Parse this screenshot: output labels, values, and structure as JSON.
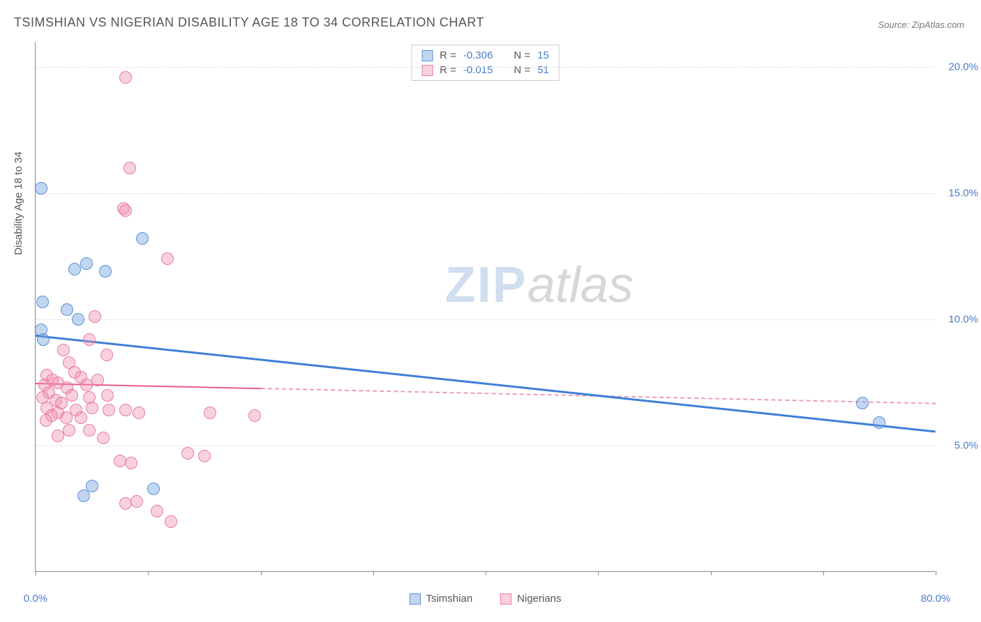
{
  "title": "TSIMSHIAN VS NIGERIAN DISABILITY AGE 18 TO 34 CORRELATION CHART",
  "source": "Source: ZipAtlas.com",
  "ylabel": "Disability Age 18 to 34",
  "watermark_zip": "ZIP",
  "watermark_atlas": "atlas",
  "chart": {
    "type": "scatter",
    "background_color": "#ffffff",
    "grid_color": "#dddddd",
    "axis_color": "#888888",
    "xlim": [
      0,
      80
    ],
    "ylim": [
      0,
      21
    ],
    "xtick_positions": [
      0,
      10,
      20,
      30,
      40,
      50,
      60,
      70,
      80
    ],
    "xtick_labels_shown": {
      "0": "0.0%",
      "80": "80.0%"
    },
    "ytick_positions": [
      5,
      10,
      15,
      20
    ],
    "ytick_labels": {
      "5": "5.0%",
      "10": "10.0%",
      "15": "15.0%",
      "20": "20.0%"
    },
    "point_radius": 9,
    "point_stroke_width": 1.5,
    "series": [
      {
        "name": "Tsimshian",
        "color_fill": "rgba(120,165,225,0.45)",
        "color_stroke": "#5b8fd6",
        "r_label": "R =",
        "r_value": "-0.306",
        "n_label": "N =",
        "n_value": "15",
        "points": [
          {
            "x": 0.5,
            "y": 15.2
          },
          {
            "x": 4.5,
            "y": 12.2
          },
          {
            "x": 3.5,
            "y": 12.0
          },
          {
            "x": 6.2,
            "y": 11.9
          },
          {
            "x": 9.5,
            "y": 13.2
          },
          {
            "x": 2.8,
            "y": 10.4
          },
          {
            "x": 0.6,
            "y": 10.7
          },
          {
            "x": 3.8,
            "y": 10.0
          },
          {
            "x": 0.5,
            "y": 9.6
          },
          {
            "x": 0.7,
            "y": 9.2
          },
          {
            "x": 5.0,
            "y": 3.4
          },
          {
            "x": 4.3,
            "y": 3.0
          },
          {
            "x": 10.5,
            "y": 3.3
          },
          {
            "x": 73.5,
            "y": 6.7
          },
          {
            "x": 75.0,
            "y": 5.9
          }
        ],
        "trend": {
          "x1": 0,
          "y1": 9.4,
          "x2": 80,
          "y2": 5.6,
          "color": "#3d7fd6",
          "width": 2.5,
          "solid_until_x": 80
        }
      },
      {
        "name": "Nigerians",
        "color_fill": "rgba(240,140,170,0.40)",
        "color_stroke": "#e87aa0",
        "r_label": "R =",
        "r_value": "-0.015",
        "n_label": "N =",
        "n_value": "51",
        "points": [
          {
            "x": 8.0,
            "y": 19.6
          },
          {
            "x": 8.4,
            "y": 16.0
          },
          {
            "x": 7.8,
            "y": 14.4
          },
          {
            "x": 8.0,
            "y": 14.3
          },
          {
            "x": 11.7,
            "y": 12.4
          },
          {
            "x": 5.3,
            "y": 10.1
          },
          {
            "x": 4.8,
            "y": 9.2
          },
          {
            "x": 2.5,
            "y": 8.8
          },
          {
            "x": 3.0,
            "y": 8.3
          },
          {
            "x": 6.3,
            "y": 8.6
          },
          {
            "x": 1.0,
            "y": 7.8
          },
          {
            "x": 1.5,
            "y": 7.6
          },
          {
            "x": 2.0,
            "y": 7.5
          },
          {
            "x": 0.8,
            "y": 7.4
          },
          {
            "x": 3.5,
            "y": 7.9
          },
          {
            "x": 4.0,
            "y": 7.7
          },
          {
            "x": 2.8,
            "y": 7.3
          },
          {
            "x": 1.2,
            "y": 7.1
          },
          {
            "x": 4.5,
            "y": 7.4
          },
          {
            "x": 5.5,
            "y": 7.6
          },
          {
            "x": 0.6,
            "y": 6.9
          },
          {
            "x": 1.8,
            "y": 6.8
          },
          {
            "x": 2.3,
            "y": 6.7
          },
          {
            "x": 3.2,
            "y": 7.0
          },
          {
            "x": 1.0,
            "y": 6.5
          },
          {
            "x": 4.8,
            "y": 6.9
          },
          {
            "x": 6.4,
            "y": 7.0
          },
          {
            "x": 2.0,
            "y": 6.3
          },
          {
            "x": 3.6,
            "y": 6.4
          },
          {
            "x": 1.4,
            "y": 6.2
          },
          {
            "x": 5.0,
            "y": 6.5
          },
          {
            "x": 6.5,
            "y": 6.4
          },
          {
            "x": 8.0,
            "y": 6.4
          },
          {
            "x": 0.9,
            "y": 6.0
          },
          {
            "x": 2.7,
            "y": 6.1
          },
          {
            "x": 4.0,
            "y": 6.1
          },
          {
            "x": 9.2,
            "y": 6.3
          },
          {
            "x": 15.5,
            "y": 6.3
          },
          {
            "x": 19.5,
            "y": 6.2
          },
          {
            "x": 3.0,
            "y": 5.6
          },
          {
            "x": 2.0,
            "y": 5.4
          },
          {
            "x": 4.8,
            "y": 5.6
          },
          {
            "x": 6.0,
            "y": 5.3
          },
          {
            "x": 7.5,
            "y": 4.4
          },
          {
            "x": 8.5,
            "y": 4.3
          },
          {
            "x": 13.5,
            "y": 4.7
          },
          {
            "x": 15.0,
            "y": 4.6
          },
          {
            "x": 8.0,
            "y": 2.7
          },
          {
            "x": 9.0,
            "y": 2.8
          },
          {
            "x": 10.8,
            "y": 2.4
          },
          {
            "x": 12.0,
            "y": 2.0
          }
        ],
        "trend": {
          "x1": 0,
          "y1": 7.5,
          "x2": 80,
          "y2": 6.7,
          "color": "#e65a8a",
          "width": 2,
          "solid_until_x": 20
        }
      }
    ]
  },
  "legend_bottom": [
    {
      "label": "Tsimshian",
      "fill": "rgba(120,165,225,0.45)",
      "stroke": "#5b8fd6"
    },
    {
      "label": "Nigerians",
      "fill": "rgba(240,140,170,0.40)",
      "stroke": "#e87aa0"
    }
  ]
}
